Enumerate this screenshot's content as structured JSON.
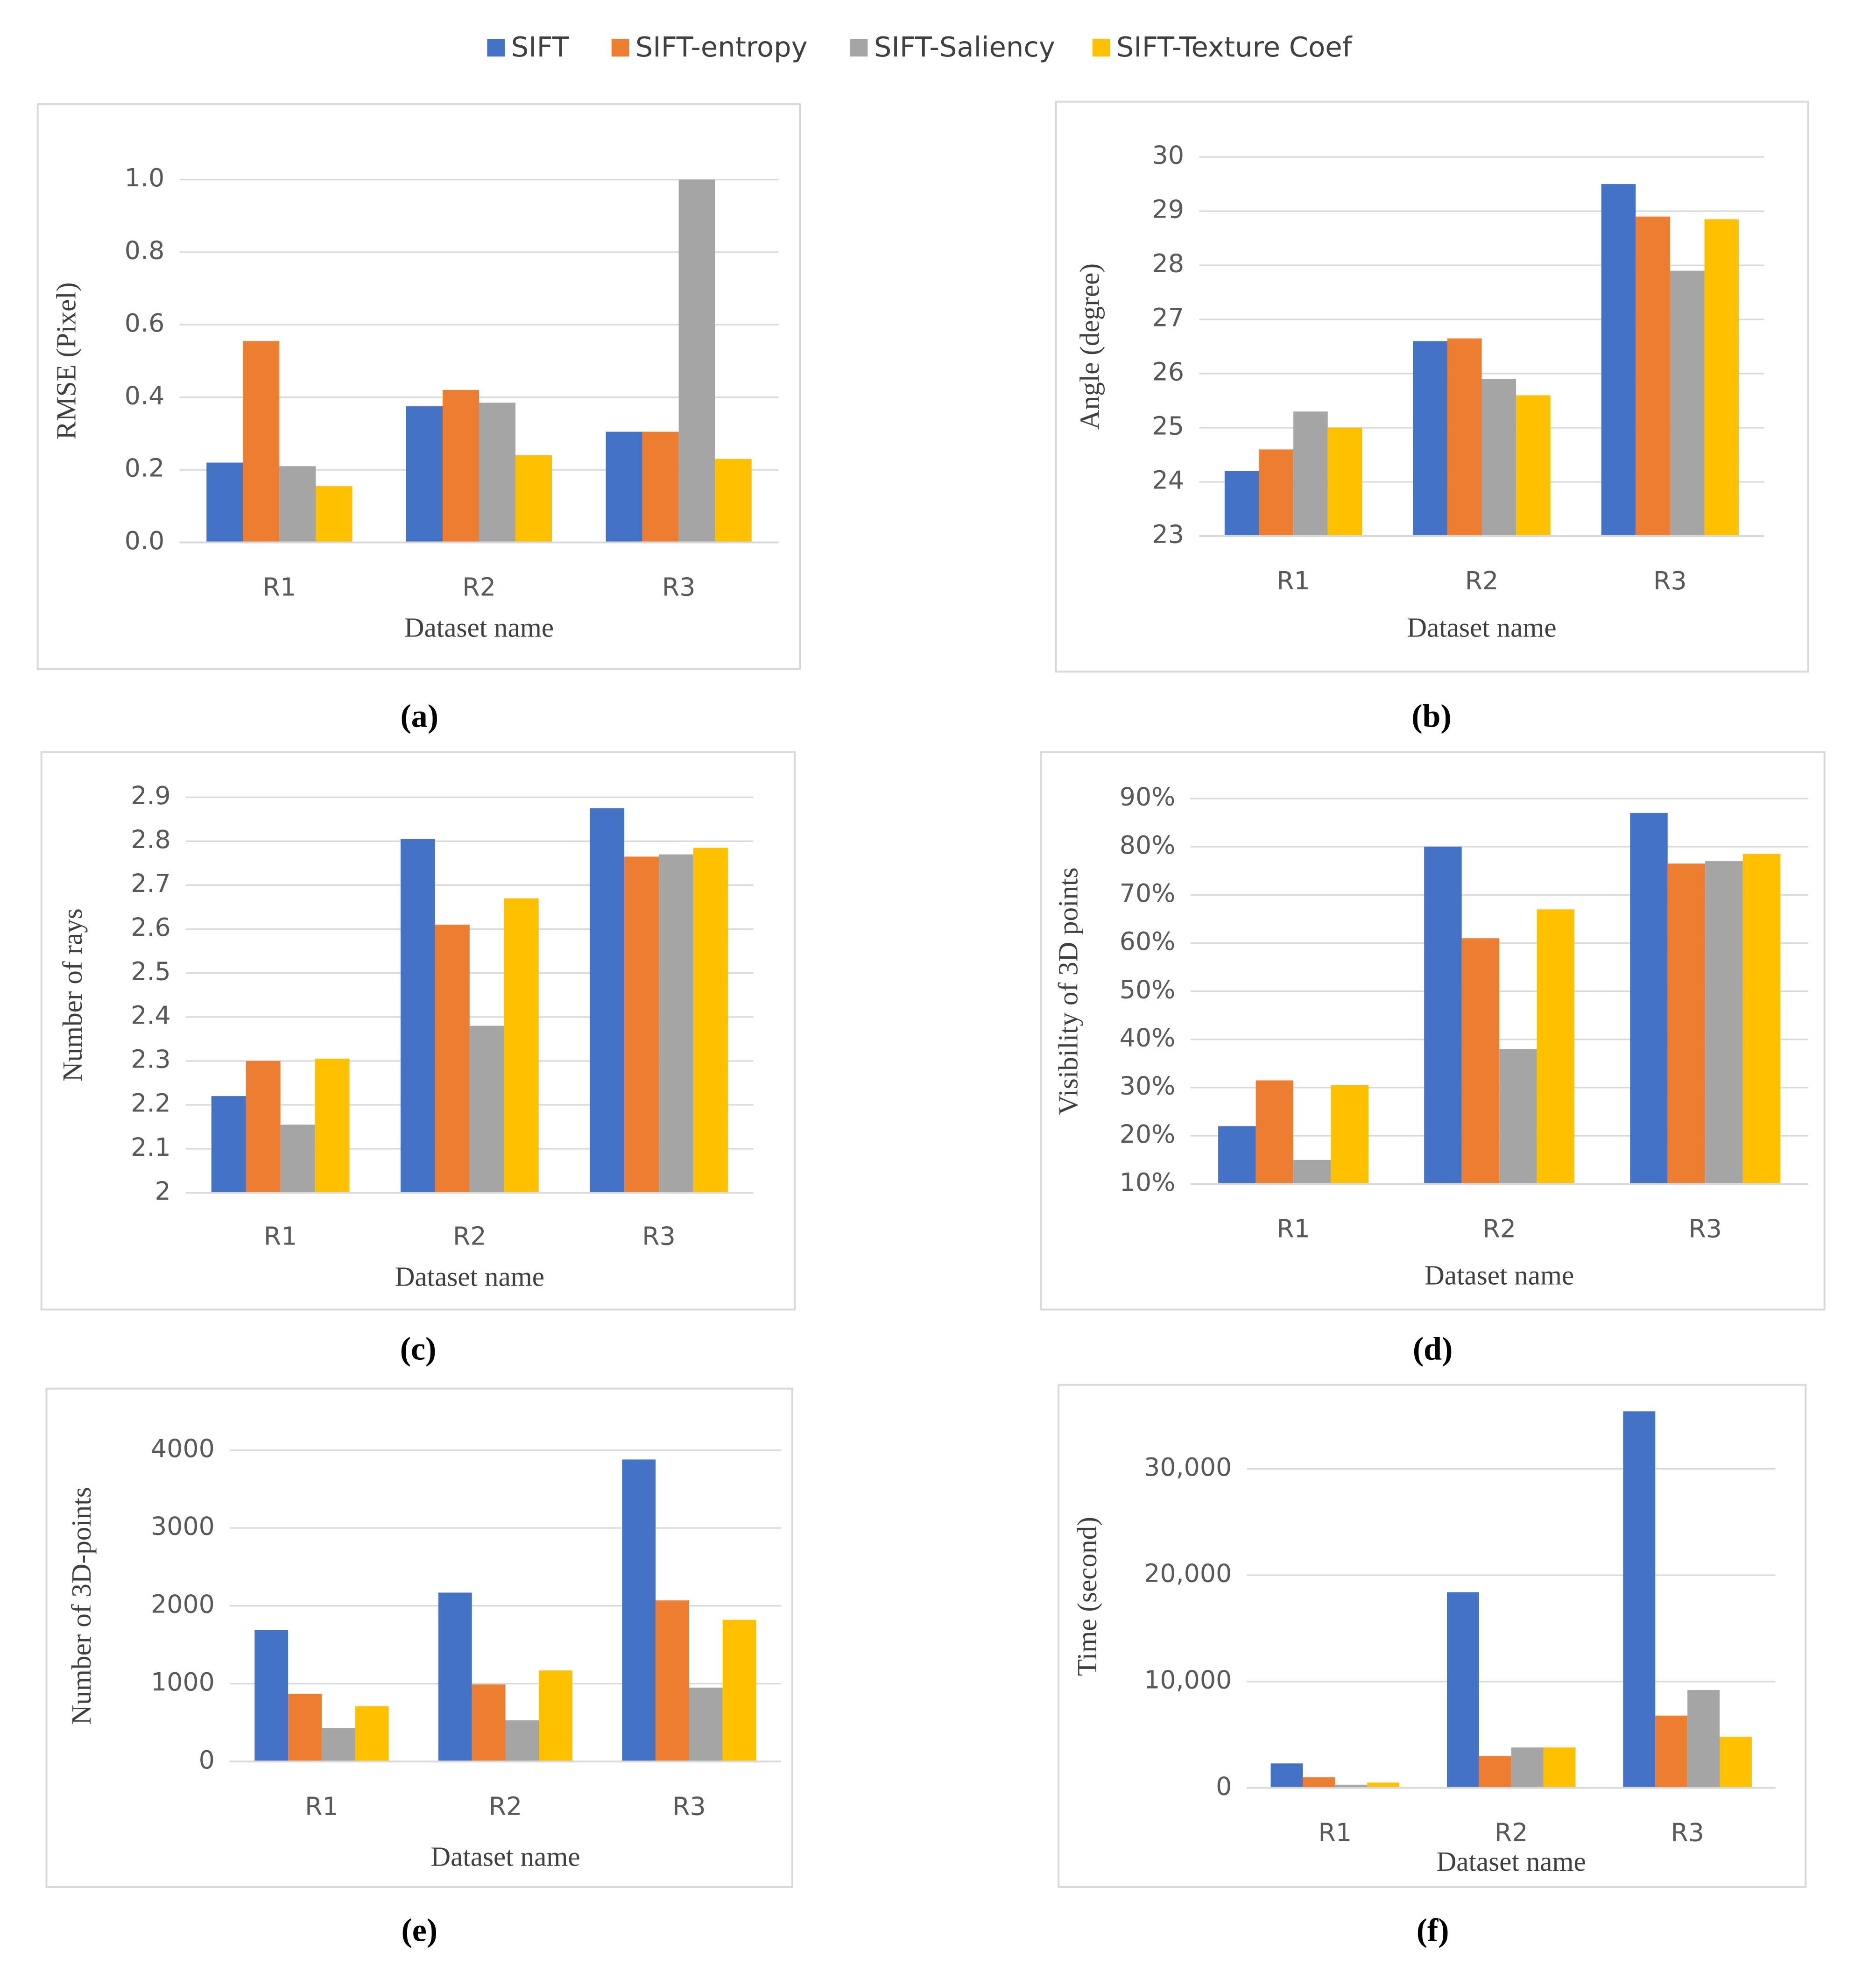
{
  "chart_data": [
    {
      "type": "bar",
      "panel_label": "(a)",
      "ylabel": "RMSE (Pixel)",
      "xlabel": "Dataset name",
      "categories": [
        "R1",
        "R2",
        "R3"
      ],
      "ylim": [
        0,
        1.0
      ],
      "yticks": [
        {
          "value": 0,
          "label": "0.0"
        },
        0.2,
        0.4,
        0.6,
        0.8,
        {
          "value": 1.0,
          "label": "1.0"
        }
      ],
      "grid": true,
      "series": [
        {
          "name": "SIFT",
          "color": "#4472c4",
          "values": [
            0.22,
            0.375,
            0.305
          ]
        },
        {
          "name": "SIFT-entropy",
          "color": "#ed7d31",
          "values": [
            0.555,
            0.42,
            0.305
          ]
        },
        {
          "name": "SIFT-Saliency",
          "color": "#a5a5a5",
          "values": [
            0.21,
            0.385,
            1.0
          ]
        },
        {
          "name": "SIFT-Texture Coef",
          "color": "#ffc000",
          "values": [
            0.155,
            0.24,
            0.23
          ]
        }
      ]
    },
    {
      "type": "bar",
      "panel_label": "(b)",
      "ylabel": "Angle (degree)",
      "xlabel": "Dataset name",
      "categories": [
        "R1",
        "R2",
        "R3"
      ],
      "ylim": [
        23,
        30
      ],
      "yticks": [
        23,
        24,
        25,
        26,
        27,
        28,
        29,
        30
      ],
      "grid": true,
      "series": [
        {
          "name": "SIFT",
          "color": "#4472c4",
          "values": [
            24.2,
            26.6,
            29.5
          ]
        },
        {
          "name": "SIFT-entropy",
          "color": "#ed7d31",
          "values": [
            24.6,
            26.65,
            28.9
          ]
        },
        {
          "name": "SIFT-Saliency",
          "color": "#a5a5a5",
          "values": [
            25.3,
            25.9,
            27.9
          ]
        },
        {
          "name": "SIFT-Texture Coef",
          "color": "#ffc000",
          "values": [
            25.0,
            25.6,
            28.85
          ]
        }
      ]
    },
    {
      "type": "bar",
      "panel_label": "(c)",
      "ylabel": "Number of rays",
      "xlabel": "Dataset name",
      "categories": [
        "R1",
        "R2",
        "R3"
      ],
      "ylim": [
        2,
        2.9
      ],
      "yticks": [
        2,
        2.1,
        2.2,
        2.3,
        2.4,
        2.5,
        2.6,
        2.7,
        2.8,
        2.9
      ],
      "grid": true,
      "series": [
        {
          "name": "SIFT",
          "color": "#4472c4",
          "values": [
            2.22,
            2.805,
            2.875
          ]
        },
        {
          "name": "SIFT-entropy",
          "color": "#ed7d31",
          "values": [
            2.3,
            2.61,
            2.765
          ]
        },
        {
          "name": "SIFT-Saliency",
          "color": "#a5a5a5",
          "values": [
            2.155,
            2.38,
            2.77
          ]
        },
        {
          "name": "SIFT-Texture Coef",
          "color": "#ffc000",
          "values": [
            2.305,
            2.67,
            2.785
          ]
        }
      ]
    },
    {
      "type": "bar",
      "panel_label": "(d)",
      "ylabel": "Visibility of 3D points",
      "xlabel": "Dataset name",
      "categories": [
        "R1",
        "R2",
        "R3"
      ],
      "ylim": [
        10,
        90
      ],
      "yticks": [
        {
          "value": 10,
          "label": "10%"
        },
        {
          "value": 20,
          "label": "20%"
        },
        {
          "value": 30,
          "label": "30%"
        },
        {
          "value": 40,
          "label": "40%"
        },
        {
          "value": 50,
          "label": "50%"
        },
        {
          "value": 60,
          "label": "60%"
        },
        {
          "value": 70,
          "label": "70%"
        },
        {
          "value": 80,
          "label": "80%"
        },
        {
          "value": 90,
          "label": "90%"
        }
      ],
      "grid": true,
      "series": [
        {
          "name": "SIFT",
          "color": "#4472c4",
          "values": [
            22,
            80,
            87
          ]
        },
        {
          "name": "SIFT-entropy",
          "color": "#ed7d31",
          "values": [
            31.5,
            61,
            76.5
          ]
        },
        {
          "name": "SIFT-Saliency",
          "color": "#a5a5a5",
          "values": [
            15,
            38,
            77
          ]
        },
        {
          "name": "SIFT-Texture Coef",
          "color": "#ffc000",
          "values": [
            30.5,
            67,
            78.5
          ]
        }
      ]
    },
    {
      "type": "bar",
      "panel_label": "(e)",
      "ylabel": "Number of 3D-points",
      "xlabel": "Dataset name",
      "categories": [
        "R1",
        "R2",
        "R3"
      ],
      "ylim": [
        0,
        4000
      ],
      "yticks": [
        0,
        1000,
        2000,
        3000,
        4000
      ],
      "grid": true,
      "series": [
        {
          "name": "SIFT",
          "color": "#4472c4",
          "values": [
            1690,
            2170,
            3880
          ]
        },
        {
          "name": "SIFT-entropy",
          "color": "#ed7d31",
          "values": [
            870,
            990,
            2070
          ]
        },
        {
          "name": "SIFT-Saliency",
          "color": "#a5a5a5",
          "values": [
            430,
            530,
            950
          ]
        },
        {
          "name": "SIFT-Texture Coef",
          "color": "#ffc000",
          "values": [
            710,
            1170,
            1820
          ]
        }
      ]
    },
    {
      "type": "bar",
      "panel_label": "(f)",
      "ylabel": "Time (second)",
      "xlabel": "Dataset name",
      "categories": [
        "R1",
        "R2",
        "R3"
      ],
      "ylim": [
        0,
        36000
      ],
      "yticks": [
        0,
        {
          "value": 10000,
          "label": "10,000"
        },
        {
          "value": 20000,
          "label": "20,000"
        },
        {
          "value": 30000,
          "label": "30,000"
        }
      ],
      "grid": true,
      "series": [
        {
          "name": "SIFT",
          "color": "#4472c4",
          "values": [
            2300,
            18400,
            35400
          ]
        },
        {
          "name": "SIFT-entropy",
          "color": "#ed7d31",
          "values": [
            1000,
            3000,
            6800
          ]
        },
        {
          "name": "SIFT-Saliency",
          "color": "#a5a5a5",
          "values": [
            300,
            3800,
            9200
          ]
        },
        {
          "name": "SIFT-Texture Coef",
          "color": "#ffc000",
          "values": [
            500,
            3800,
            4800
          ]
        }
      ]
    }
  ]
}
